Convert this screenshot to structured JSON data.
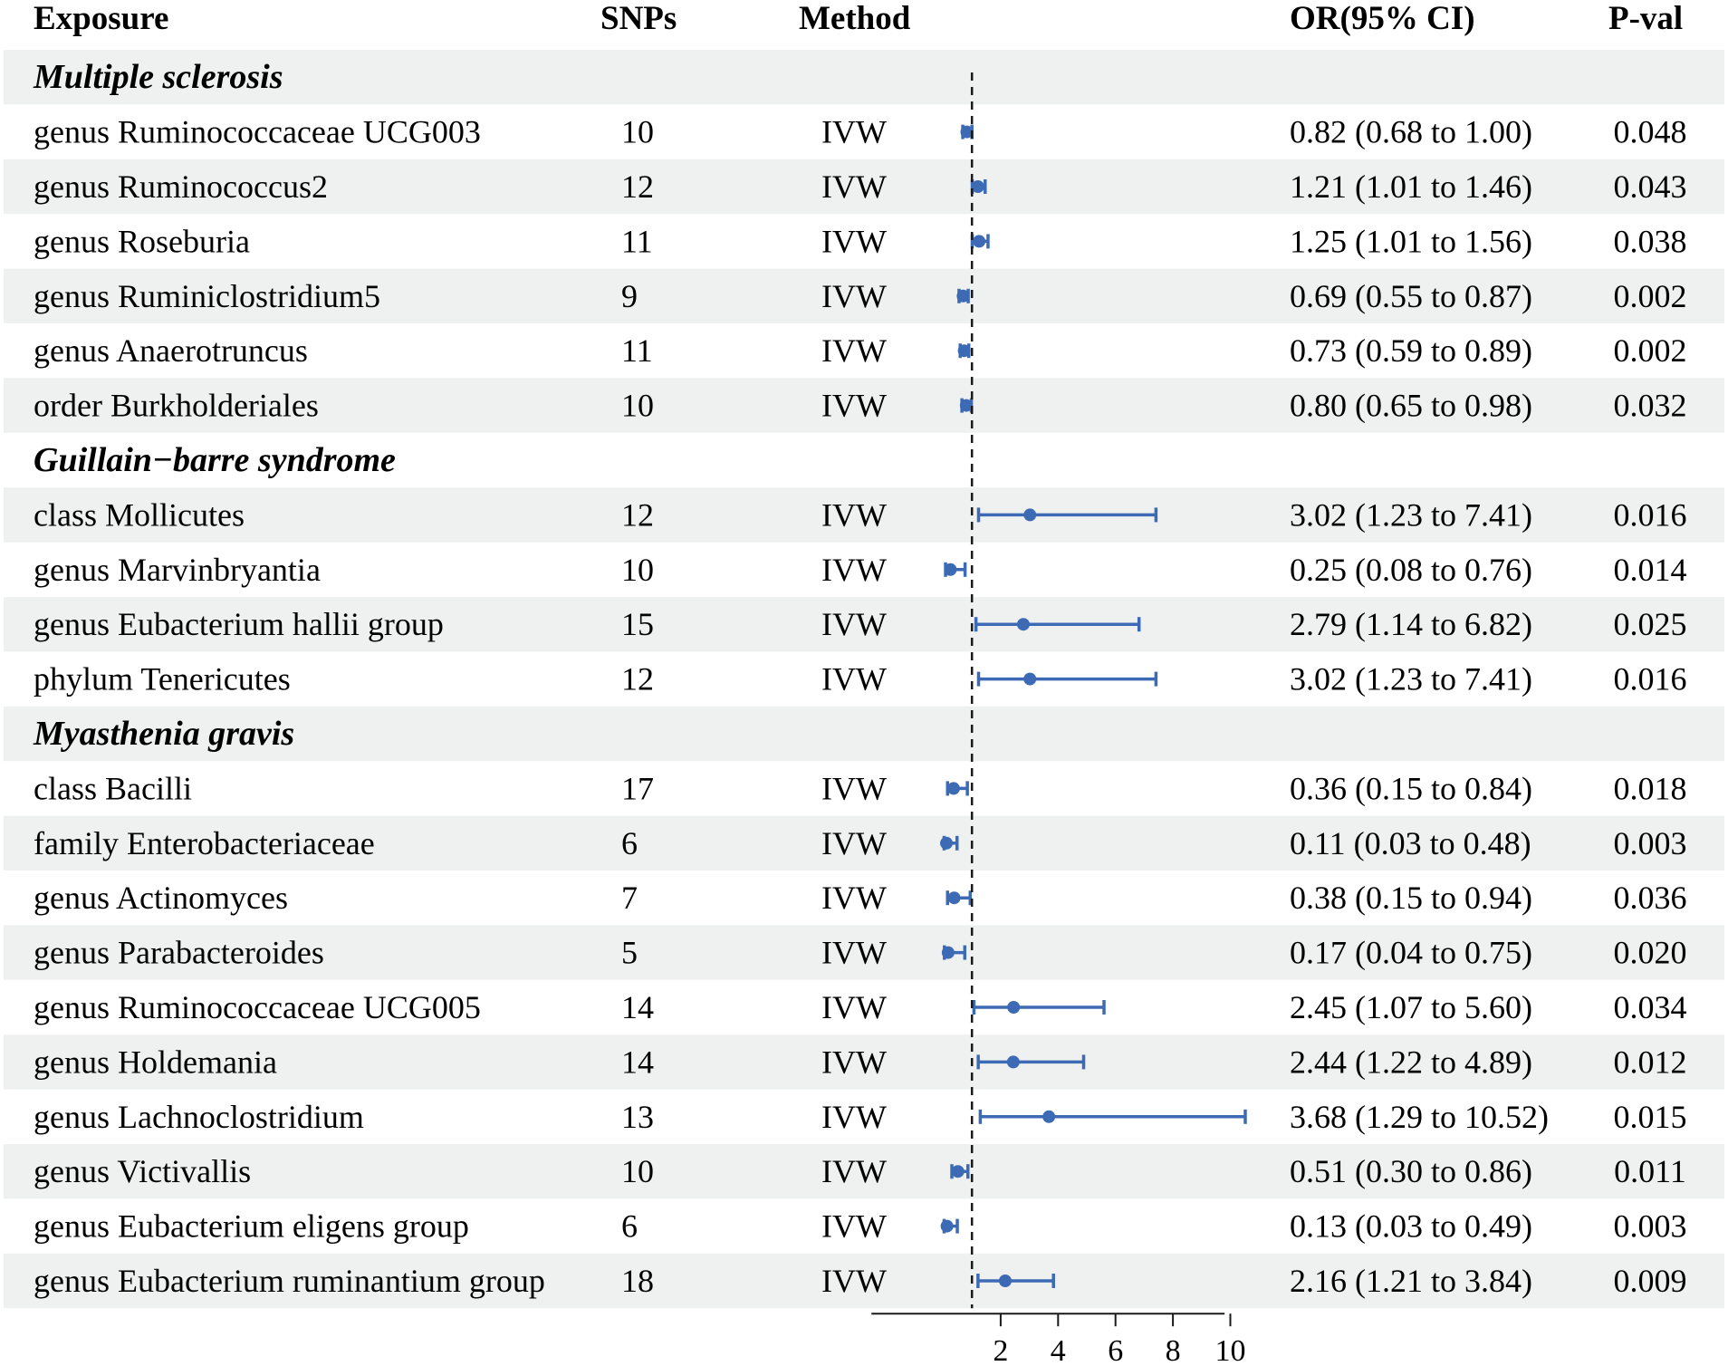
{
  "columns": {
    "exposure": "Exposure",
    "snps": "SNPs",
    "method": "Method",
    "or": "OR(95% CI)",
    "pval": "P-val"
  },
  "chart_data": {
    "type": "forest",
    "reference_line": 1,
    "x_ticks": [
      2,
      4,
      6,
      8,
      10
    ],
    "x_range": [
      -2.5,
      9.8
    ],
    "marker_color": "#3d6ab4",
    "groups": [
      {
        "name": "Multiple sclerosis",
        "rows": [
          {
            "exposure": "genus Ruminococcaceae UCG003",
            "snps": "10",
            "method": "IVW",
            "or": 0.82,
            "lo": 0.68,
            "hi": 1.0,
            "or_text": "0.82 (0.68 to 1.00)",
            "pval": "0.048"
          },
          {
            "exposure": "genus Ruminococcus2",
            "snps": "12",
            "method": "IVW",
            "or": 1.21,
            "lo": 1.01,
            "hi": 1.46,
            "or_text": "1.21 (1.01 to 1.46)",
            "pval": "0.043"
          },
          {
            "exposure": "genus Roseburia",
            "snps": "11",
            "method": "IVW",
            "or": 1.25,
            "lo": 1.01,
            "hi": 1.56,
            "or_text": "1.25 (1.01 to 1.56)",
            "pval": "0.038"
          },
          {
            "exposure": "genus Ruminiclostridium5",
            "snps": "9",
            "method": "IVW",
            "or": 0.69,
            "lo": 0.55,
            "hi": 0.87,
            "or_text": "0.69 (0.55 to 0.87)",
            "pval": "0.002"
          },
          {
            "exposure": "genus Anaerotruncus",
            "snps": "11",
            "method": "IVW",
            "or": 0.73,
            "lo": 0.59,
            "hi": 0.89,
            "or_text": "0.73 (0.59 to 0.89)",
            "pval": "0.002"
          },
          {
            "exposure": "order Burkholderiales",
            "snps": "10",
            "method": "IVW",
            "or": 0.8,
            "lo": 0.65,
            "hi": 0.98,
            "or_text": "0.80 (0.65 to 0.98)",
            "pval": "0.032"
          }
        ]
      },
      {
        "name": "Guillain−barre syndrome",
        "rows": [
          {
            "exposure": "class Mollicutes",
            "snps": "12",
            "method": "IVW",
            "or": 3.02,
            "lo": 1.23,
            "hi": 7.41,
            "or_text": "3.02 (1.23 to 7.41)",
            "pval": "0.016"
          },
          {
            "exposure": "genus Marvinbryantia",
            "snps": "10",
            "method": "IVW",
            "or": 0.25,
            "lo": 0.08,
            "hi": 0.76,
            "or_text": "0.25 (0.08 to 0.76)",
            "pval": "0.014"
          },
          {
            "exposure": "genus Eubacterium hallii group",
            "snps": "15",
            "method": "IVW",
            "or": 2.79,
            "lo": 1.14,
            "hi": 6.82,
            "or_text": "2.79 (1.14 to 6.82)",
            "pval": "0.025"
          },
          {
            "exposure": "phylum Tenericutes",
            "snps": "12",
            "method": "IVW",
            "or": 3.02,
            "lo": 1.23,
            "hi": 7.41,
            "or_text": "3.02 (1.23 to 7.41)",
            "pval": "0.016"
          }
        ]
      },
      {
        "name": "Myasthenia gravis",
        "rows": [
          {
            "exposure": "class Bacilli",
            "snps": "17",
            "method": "IVW",
            "or": 0.36,
            "lo": 0.15,
            "hi": 0.84,
            "or_text": "0.36 (0.15 to 0.84)",
            "pval": "0.018"
          },
          {
            "exposure": "family Enterobacteriaceae",
            "snps": "6",
            "method": "IVW",
            "or": 0.11,
            "lo": 0.03,
            "hi": 0.48,
            "or_text": "0.11 (0.03 to 0.48)",
            "pval": "0.003"
          },
          {
            "exposure": "genus Actinomyces",
            "snps": "7",
            "method": "IVW",
            "or": 0.38,
            "lo": 0.15,
            "hi": 0.94,
            "or_text": "0.38 (0.15 to 0.94)",
            "pval": "0.036"
          },
          {
            "exposure": "genus Parabacteroides",
            "snps": "5",
            "method": "IVW",
            "or": 0.17,
            "lo": 0.04,
            "hi": 0.75,
            "or_text": "0.17 (0.04 to 0.75)",
            "pval": "0.020"
          },
          {
            "exposure": "genus Ruminococcaceae UCG005",
            "snps": "14",
            "method": "IVW",
            "or": 2.45,
            "lo": 1.07,
            "hi": 5.6,
            "or_text": "2.45 (1.07 to 5.60)",
            "pval": "0.034"
          },
          {
            "exposure": "genus Holdemania",
            "snps": "14",
            "method": "IVW",
            "or": 2.44,
            "lo": 1.22,
            "hi": 4.89,
            "or_text": "2.44 (1.22 to 4.89)",
            "pval": "0.012"
          },
          {
            "exposure": "genus Lachnoclostridium",
            "snps": "13",
            "method": "IVW",
            "or": 3.68,
            "lo": 1.29,
            "hi": 10.52,
            "or_text": "3.68 (1.29 to 10.52)",
            "pval": "0.015"
          },
          {
            "exposure": "genus Victivallis",
            "snps": "10",
            "method": "IVW",
            "or": 0.51,
            "lo": 0.3,
            "hi": 0.86,
            "or_text": "0.51 (0.30 to 0.86)",
            "pval": "0.011"
          },
          {
            "exposure": "genus Eubacterium eligens group",
            "snps": "6",
            "method": "IVW",
            "or": 0.13,
            "lo": 0.03,
            "hi": 0.49,
            "or_text": "0.13 (0.03 to 0.49)",
            "pval": "0.003"
          },
          {
            "exposure": "genus Eubacterium ruminantium group",
            "snps": "18",
            "method": "IVW",
            "or": 2.16,
            "lo": 1.21,
            "hi": 3.84,
            "or_text": "2.16 (1.21 to 3.84)",
            "pval": "0.009"
          }
        ]
      }
    ]
  }
}
